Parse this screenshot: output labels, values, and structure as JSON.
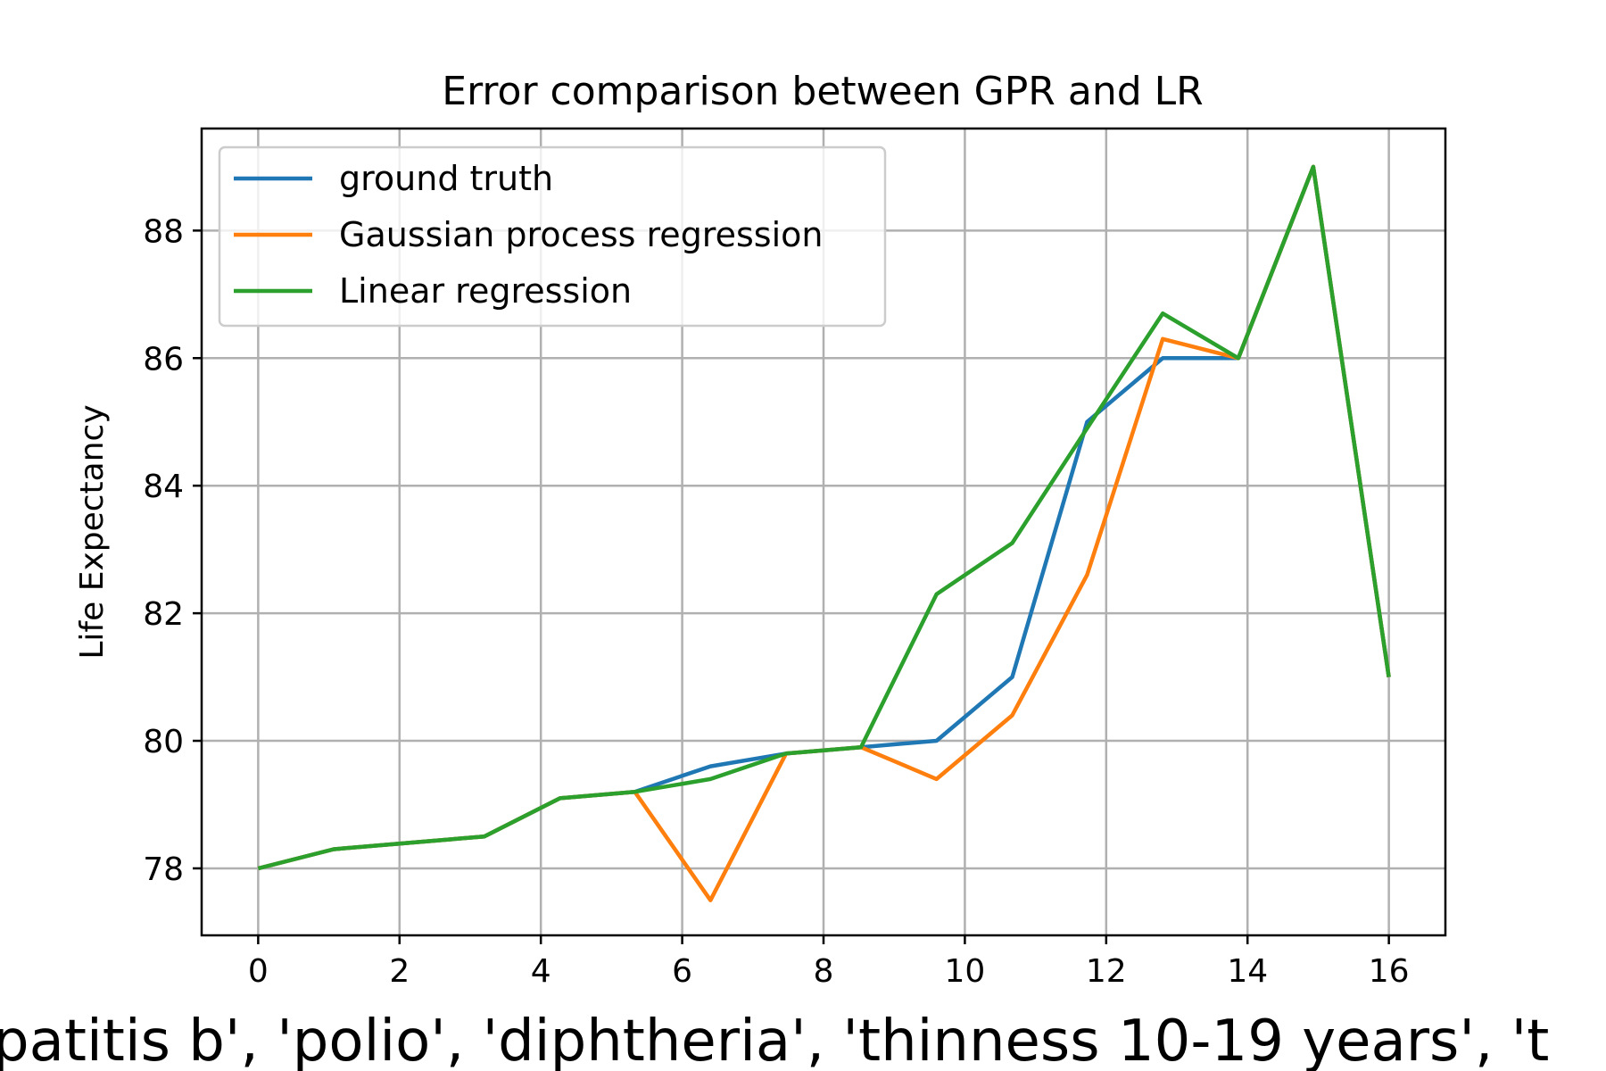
{
  "chart_data": {
    "type": "line",
    "title": "Error comparison between GPR and LR",
    "xlabel": "patitis b', 'polio', 'diphtheria', 'thinness 10-19 years', 't",
    "ylabel": "Life Expectancy",
    "xlim": [
      -0.8,
      16.8
    ],
    "ylim": [
      76.95,
      89.6
    ],
    "x_ticks": [
      0,
      2,
      4,
      6,
      8,
      10,
      12,
      14,
      16
    ],
    "y_ticks": [
      78,
      80,
      82,
      84,
      86,
      88
    ],
    "grid": true,
    "legend_position": "top-left",
    "x": [
      0,
      1.07,
      2.13,
      3.2,
      4.27,
      5.33,
      6.4,
      7.47,
      8.53,
      9.6,
      10.67,
      11.73,
      12.8,
      13.87,
      14.93,
      16
    ],
    "series": [
      {
        "name": "ground truth",
        "color": "#1f77b4",
        "values": [
          78.0,
          78.3,
          78.4,
          78.5,
          79.1,
          79.2,
          79.6,
          79.8,
          79.9,
          80.0,
          81.0,
          85.0,
          86.0,
          86.0,
          89.0,
          81.0
        ]
      },
      {
        "name": "Gaussian process regression",
        "color": "#ff7f0e",
        "values": [
          78.0,
          78.3,
          78.4,
          78.5,
          79.1,
          79.2,
          77.5,
          79.8,
          79.9,
          79.4,
          80.4,
          82.6,
          86.3,
          86.0,
          89.0,
          81.0
        ]
      },
      {
        "name": "Linear regression",
        "color": "#2ca02c",
        "values": [
          78.0,
          78.3,
          78.4,
          78.5,
          79.1,
          79.2,
          79.4,
          79.8,
          79.9,
          82.3,
          83.1,
          84.9,
          86.7,
          86.0,
          89.0,
          81.0
        ]
      }
    ]
  }
}
